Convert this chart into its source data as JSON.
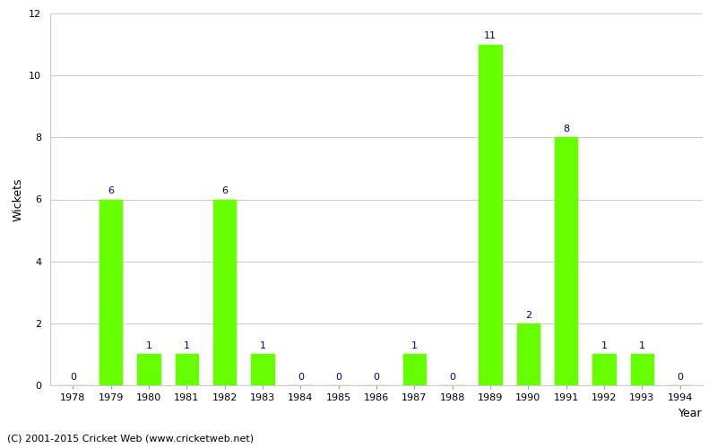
{
  "years": [
    1978,
    1979,
    1980,
    1981,
    1982,
    1983,
    1984,
    1985,
    1986,
    1987,
    1988,
    1989,
    1990,
    1991,
    1992,
    1993,
    1994
  ],
  "wickets": [
    0,
    6,
    1,
    1,
    6,
    1,
    0,
    0,
    0,
    1,
    0,
    11,
    2,
    8,
    1,
    1,
    0
  ],
  "bar_color": "#66ff00",
  "label_color": "#000080",
  "xlabel": "Year",
  "ylabel": "Wickets",
  "ylim": [
    0,
    12
  ],
  "yticks": [
    0,
    2,
    4,
    6,
    8,
    10,
    12
  ],
  "background_color": "#ffffff",
  "grid_color": "#cccccc",
  "footer": "(C) 2001-2015 Cricket Web (www.cricketweb.net)",
  "label_fontsize": 9,
  "tick_fontsize": 8,
  "annotation_fontsize": 8,
  "footer_fontsize": 8
}
